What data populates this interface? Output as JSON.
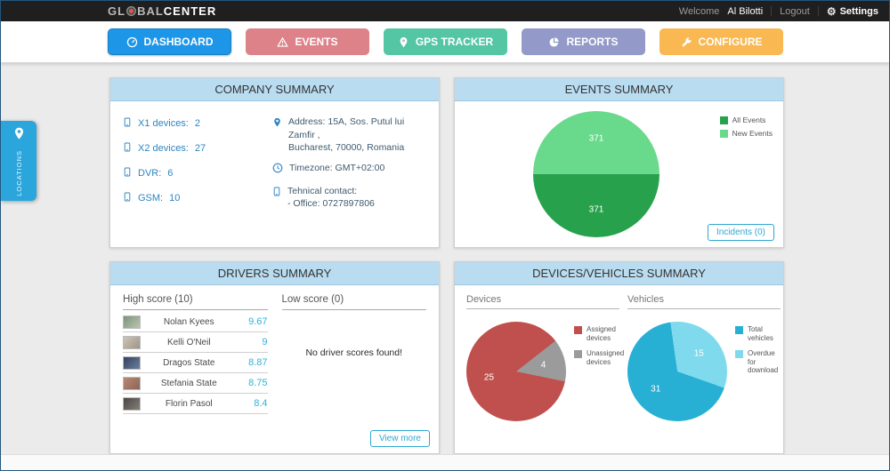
{
  "topbar": {
    "logo_part1": "GL",
    "logo_part2": "BAL",
    "logo_part3": "CENTER",
    "welcome_text": "Welcome",
    "username": "Al Bilotti",
    "logout_label": "Logout",
    "settings_label": "Settings",
    "gear_icon": "⚙"
  },
  "nav": {
    "items": [
      {
        "label": "DASHBOARD",
        "color": "#1d96e8",
        "active": true
      },
      {
        "label": "EVENTS",
        "color": "#dd8289",
        "active": false
      },
      {
        "label": "GPS TRACKER",
        "color": "#54c6a4",
        "active": false
      },
      {
        "label": "REPORTS",
        "color": "#9399c9",
        "active": false
      },
      {
        "label": "CONFIGURE",
        "color": "#f9b851",
        "active": false
      }
    ]
  },
  "locations_tab": {
    "label": "LOCATIONS"
  },
  "company_summary": {
    "title": "COMPANY SUMMARY",
    "device_counts": [
      {
        "label": "X1 devices:",
        "value": "2"
      },
      {
        "label": "X2 devices:",
        "value": "27"
      },
      {
        "label": "DVR:",
        "value": "6"
      },
      {
        "label": "GSM:",
        "value": "10"
      }
    ],
    "address_line1": "Address: 15A, Sos. Putul lui Zamfir ,",
    "address_line2": "Bucharest, 70000, Romania",
    "timezone": "Timezone: GMT+02:00",
    "contact_label": "Tehnical contact:",
    "contact_value": "- Office: 0727897806"
  },
  "events_summary": {
    "title": "EVENTS SUMMARY",
    "legend": [
      {
        "label": "All Events",
        "color": "#28a14c"
      },
      {
        "label": "New Events",
        "color": "#69d98c"
      }
    ],
    "incidents_button": "Incidents (0)"
  },
  "drivers_summary": {
    "title": "DRIVERS SUMMARY",
    "high_header": "High score (10)",
    "low_header": "Low score (0)",
    "high_scores": [
      {
        "name": "Nolan Kyees",
        "score": "9.67"
      },
      {
        "name": "Kelli O'Neil",
        "score": "9"
      },
      {
        "name": "Dragos State",
        "score": "8.87"
      },
      {
        "name": "Stefania State",
        "score": "8.75"
      },
      {
        "name": "Florin Pasol",
        "score": "8.4"
      }
    ],
    "low_empty_message": "No driver scores found!",
    "view_more_button": "View more"
  },
  "devices_summary": {
    "title": "DEVICES/VEHICLES SUMMARY",
    "devices_header": "Devices",
    "vehicles_header": "Vehicles",
    "devices_legend": [
      {
        "label": "Assigned devices",
        "color": "#c0504d"
      },
      {
        "label": "Unassigned devices",
        "color": "#9b9b9b"
      }
    ],
    "vehicles_legend": [
      {
        "label": "Total vehicles",
        "color": "#27afd4"
      },
      {
        "label": "Overdue for download",
        "color": "#7fdaee"
      }
    ]
  },
  "chart_data": [
    {
      "type": "pie",
      "title": "Events Summary",
      "legend_position": "right",
      "start_angle": -90,
      "slices": [
        {
          "label": "New Events",
          "value": 371,
          "color": "#69d98c"
        },
        {
          "label": "All Events",
          "value": 371,
          "color": "#28a14c"
        }
      ]
    },
    {
      "type": "pie",
      "title": "Devices",
      "legend_position": "right",
      "start_angle": 52,
      "slices": [
        {
          "label": "Unassigned devices",
          "value": 4,
          "color": "#9b9b9b"
        },
        {
          "label": "Assigned devices",
          "value": 25,
          "color": "#c0504d"
        }
      ]
    },
    {
      "type": "pie",
      "title": "Vehicles",
      "legend_position": "right",
      "start_angle": -8,
      "slices": [
        {
          "label": "Overdue for download",
          "value": 15,
          "color": "#7fdaee"
        },
        {
          "label": "Total vehicles",
          "value": 31,
          "color": "#27afd4"
        }
      ]
    }
  ]
}
